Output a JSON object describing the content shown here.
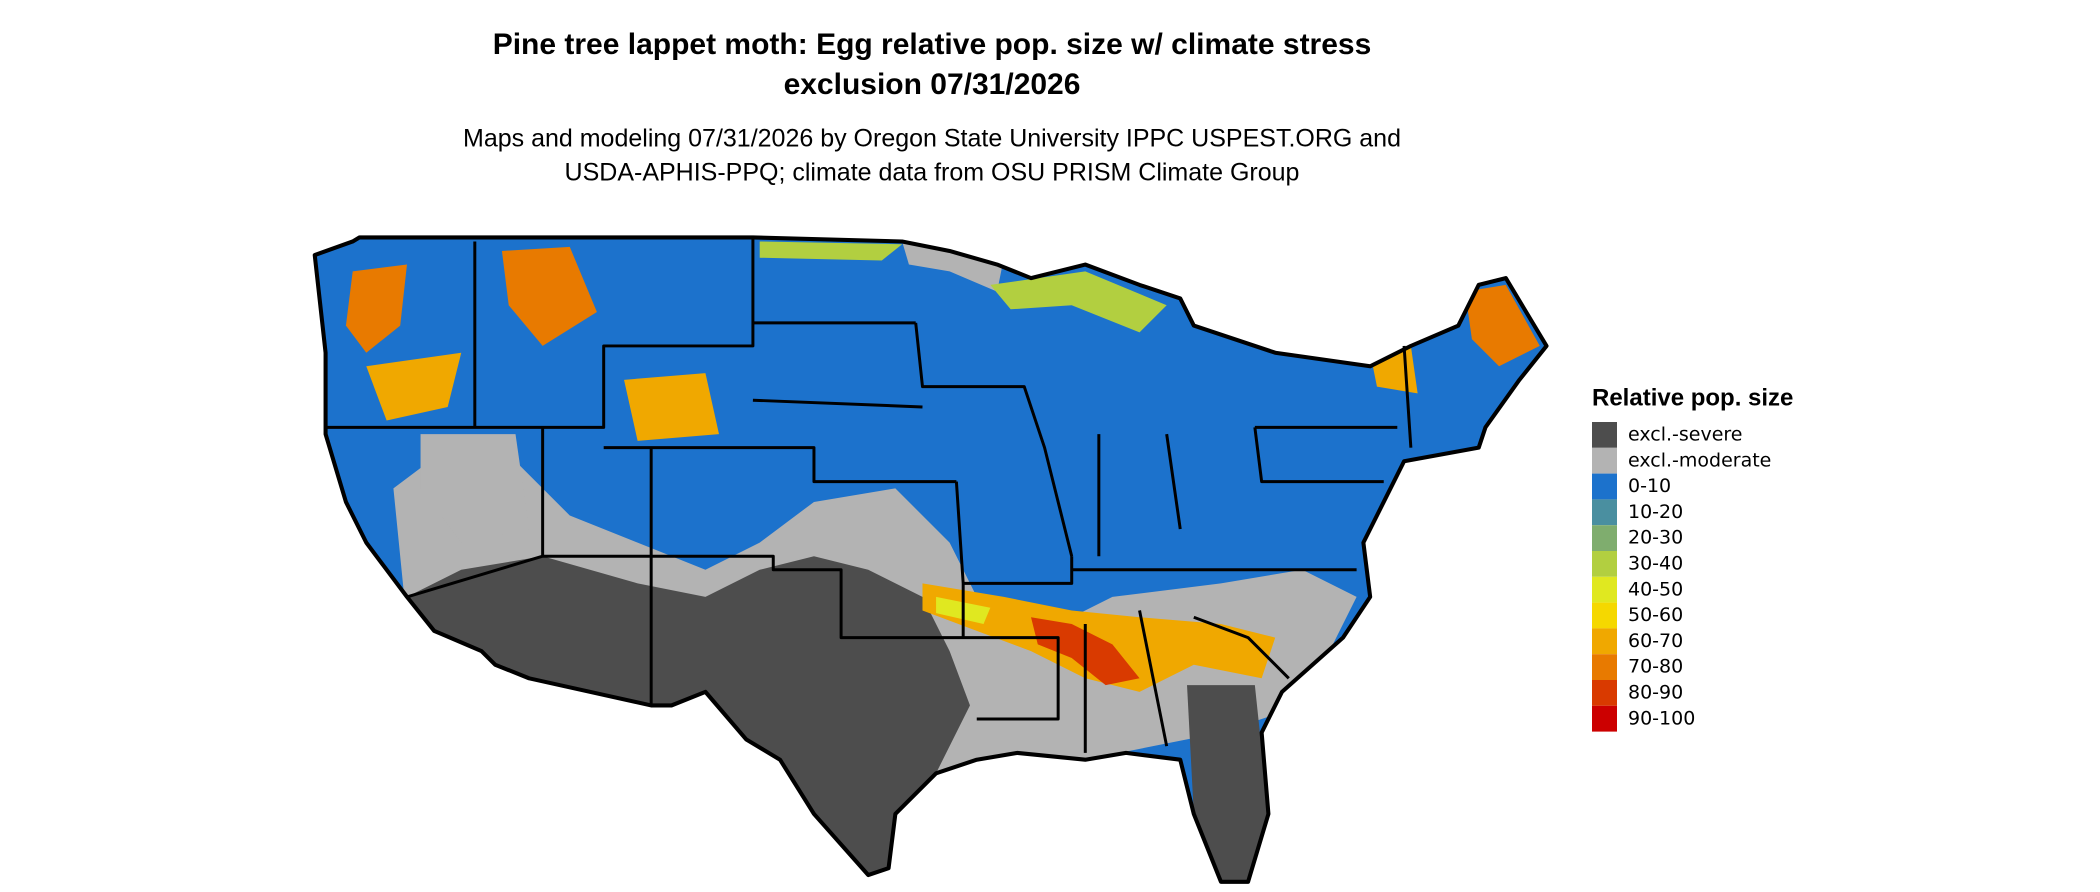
{
  "header": {
    "title": [
      "Pine tree lappet moth: Egg relative pop. size w/ climate stress",
      "exclusion 07/31/2026"
    ],
    "subtitle": [
      "Maps and modeling 07/31/2026 by Oregon State University IPPC USPEST.ORG and",
      "USDA-APHIS-PPQ; climate data from OSU PRISM Climate Group"
    ]
  },
  "legend": {
    "title": "Relative pop. size",
    "items": [
      {
        "label": "excl.-severe",
        "color": "#4d4d4d"
      },
      {
        "label": "excl.-moderate",
        "color": "#b3b3b3"
      },
      {
        "label": "0-10",
        "color": "#1c72cc"
      },
      {
        "label": "10-20",
        "color": "#4a8fa0"
      },
      {
        "label": "20-30",
        "color": "#7fad6e"
      },
      {
        "label": "30-40",
        "color": "#b2cf40"
      },
      {
        "label": "40-50",
        "color": "#e0e820"
      },
      {
        "label": "50-60",
        "color": "#f5d800"
      },
      {
        "label": "60-70",
        "color": "#f0a800"
      },
      {
        "label": "70-80",
        "color": "#e87a00"
      },
      {
        "label": "80-90",
        "color": "#d93a00"
      },
      {
        "label": "90-100",
        "color": "#cc0000"
      }
    ]
  }
}
